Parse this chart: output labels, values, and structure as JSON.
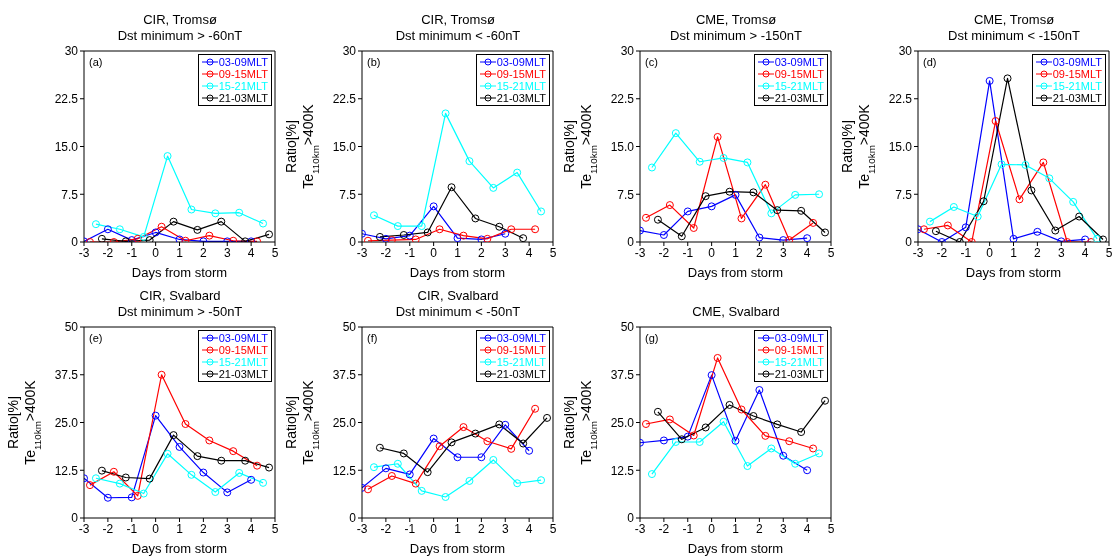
{
  "chart_data": [
    {
      "type": "line",
      "title": "CIR, Tromsø\nDst minimum > -60nT",
      "xlabel": "Days from storm",
      "annotations": [
        "(a)"
      ],
      "xlim": [
        -3,
        5
      ],
      "xticks": [
        -3,
        -2,
        -1,
        0,
        1,
        2,
        3,
        4,
        5
      ],
      "ylim": [
        0,
        30
      ],
      "yticks": [
        0,
        {
          "value": 7.5,
          "label": "7.5"
        },
        {
          "value": 15,
          "label": "15.0"
        },
        {
          "value": 22.5,
          "label": "22.5"
        },
        30
      ],
      "legend": "top right",
      "marker": "circle",
      "line_style": "solid",
      "grid": false,
      "series": [
        {
          "name": "03-09MLT",
          "color": "#0000ff",
          "x": [
            -3,
            -2,
            -1,
            0,
            1,
            2,
            3,
            4
          ],
          "values": [
            0.1,
            2.0,
            0.3,
            1.5,
            0.4,
            0.1,
            0.1,
            0.1
          ]
        },
        {
          "name": "09-15MLT",
          "color": "#ff0000",
          "x": [
            -2.75,
            -1.75,
            -0.75,
            0.25,
            1.25,
            2.25,
            3.25,
            4.25
          ],
          "values": [
            0,
            0,
            0.5,
            2.4,
            0.2,
            1.0,
            0.2,
            0.1
          ]
        },
        {
          "name": "15-21MLT",
          "color": "#00ffff",
          "x": [
            -2.5,
            -1.5,
            -0.5,
            0.5,
            1.5,
            2.5,
            3.5,
            4.5
          ],
          "values": [
            2.8,
            2.0,
            0.8,
            13.5,
            5.1,
            4.5,
            4.6,
            2.9
          ]
        },
        {
          "name": "21-03MLT",
          "color": "#000000",
          "x": [
            -2.25,
            -1.25,
            -0.25,
            0.75,
            1.75,
            2.75,
            3.75,
            4.75
          ],
          "values": [
            0.5,
            0.1,
            0.3,
            3.2,
            1.9,
            3.2,
            0.1,
            1.2
          ]
        }
      ]
    },
    {
      "type": "line",
      "title": "CIR, Tromsø\nDst minimum < -60nT",
      "xlabel": "Days from storm",
      "ylabel": "Ratio[%]\nTe$_{110km}$>400K",
      "annotations": [
        "(b)"
      ],
      "xlim": [
        -3,
        5
      ],
      "xticks": [
        -3,
        -2,
        -1,
        0,
        1,
        2,
        3,
        4,
        5
      ],
      "ylim": [
        0,
        30
      ],
      "yticks": [
        0,
        {
          "value": 7.5,
          "label": "7.5"
        },
        {
          "value": 15,
          "label": "15.0"
        },
        {
          "value": 22.5,
          "label": "22.5"
        },
        30
      ],
      "legend": "top right",
      "marker": "circle",
      "line_style": "solid",
      "grid": false,
      "series": [
        {
          "name": "03-09MLT",
          "color": "#0000ff",
          "x": [
            -3,
            -2,
            -1,
            0,
            1,
            2,
            3
          ],
          "values": [
            1.3,
            0.5,
            1.0,
            5.6,
            0.6,
            0.4,
            1.3
          ]
        },
        {
          "name": "09-15MLT",
          "color": "#ff0000",
          "x": [
            -2.75,
            -1.75,
            -0.75,
            0.25,
            1.25,
            2.25,
            3.25,
            4.25
          ],
          "values": [
            0.2,
            0.3,
            0.4,
            2.0,
            1.0,
            0.5,
            2.0,
            2.0
          ]
        },
        {
          "name": "15-21MLT",
          "color": "#00ffff",
          "x": [
            -2.5,
            -1.5,
            -0.5,
            0.5,
            1.5,
            2.5,
            3.5,
            4.5
          ],
          "values": [
            4.2,
            2.5,
            2.5,
            20.2,
            12.7,
            8.5,
            10.9,
            4.8
          ]
        },
        {
          "name": "21-03MLT",
          "color": "#000000",
          "x": [
            -2.25,
            -1.25,
            -0.25,
            0.75,
            1.75,
            2.75,
            3.75
          ],
          "values": [
            0.8,
            1.1,
            1.5,
            8.6,
            3.7,
            2.4,
            0.6
          ]
        }
      ]
    },
    {
      "type": "line",
      "title": "CME, Tromsø\nDst minimum > -150nT",
      "xlabel": "Days from storm",
      "ylabel": "Ratio[%]\nTe$_{110km}$>400K",
      "annotations": [
        "(c)"
      ],
      "xlim": [
        -3,
        5
      ],
      "xticks": [
        -3,
        -2,
        -1,
        0,
        1,
        2,
        3,
        4,
        5
      ],
      "ylim": [
        0,
        30
      ],
      "yticks": [
        0,
        {
          "value": 7.5,
          "label": "7.5"
        },
        {
          "value": 15,
          "label": "15.0"
        },
        {
          "value": 22.5,
          "label": "22.5"
        },
        30
      ],
      "legend": "top right",
      "marker": "circle",
      "line_style": "solid",
      "grid": false,
      "series": [
        {
          "name": "03-09MLT",
          "color": "#0000ff",
          "x": [
            -3,
            -2,
            -1,
            0,
            1,
            2,
            3,
            4
          ],
          "values": [
            1.8,
            1.1,
            4.8,
            5.6,
            7.4,
            0.7,
            0.3,
            0.6
          ]
        },
        {
          "name": "09-15MLT",
          "color": "#ff0000",
          "x": [
            -2.75,
            -1.75,
            -0.75,
            0.25,
            1.25,
            2.25,
            3.25,
            4.25
          ],
          "values": [
            3.8,
            5.8,
            2.2,
            16.5,
            3.7,
            9.0,
            0.3,
            3.0
          ]
        },
        {
          "name": "15-21MLT",
          "color": "#00ffff",
          "x": [
            -2.5,
            -1.5,
            -0.5,
            0.5,
            1.5,
            2.5,
            3.5,
            4.5
          ],
          "values": [
            11.7,
            17.1,
            12.6,
            13.2,
            12.5,
            4.5,
            7.4,
            7.5
          ]
        },
        {
          "name": "21-03MLT",
          "color": "#000000",
          "x": [
            -2.25,
            -1.25,
            -0.25,
            0.75,
            1.75,
            2.75,
            3.75,
            4.75
          ],
          "values": [
            3.5,
            0.9,
            7.2,
            7.9,
            7.8,
            5.0,
            4.9,
            1.5
          ]
        }
      ]
    },
    {
      "type": "line",
      "title": "CME, Tromsø\nDst minimum < -150nT",
      "xlabel": "Days from storm",
      "ylabel": "Ratio[%]\nTe$_{110km}$>400K",
      "annotations": [
        "(d)"
      ],
      "xlim": [
        -3,
        5
      ],
      "xticks": [
        -3,
        -2,
        -1,
        0,
        1,
        2,
        3,
        4,
        5
      ],
      "ylim": [
        0,
        30
      ],
      "yticks": [
        0,
        {
          "value": 7.5,
          "label": "7.5"
        },
        {
          "value": 15,
          "label": "15.0"
        },
        {
          "value": 22.5,
          "label": "22.5"
        },
        30
      ],
      "legend": "top right",
      "marker": "circle",
      "line_style": "solid",
      "grid": false,
      "series": [
        {
          "name": "03-09MLT",
          "color": "#0000ff",
          "x": [
            -3,
            -2,
            -1,
            0,
            1,
            2,
            3,
            4
          ],
          "values": [
            2.0,
            0,
            2.3,
            25.3,
            0.5,
            1.6,
            0.1,
            0.4
          ]
        },
        {
          "name": "09-15MLT",
          "color": "#ff0000",
          "x": [
            -2.75,
            -1.75,
            -0.75,
            0.25,
            1.25,
            2.25,
            3.25,
            4.25
          ],
          "values": [
            2.0,
            2.6,
            0,
            19.0,
            6.7,
            12.5,
            0,
            0
          ]
        },
        {
          "name": "15-21MLT",
          "color": "#00ffff",
          "x": [
            -2.5,
            -1.5,
            -0.5,
            0.5,
            1.5,
            2.5,
            3.5,
            4.5
          ],
          "values": [
            3.2,
            5.5,
            4.0,
            12.2,
            12.1,
            10.0,
            6.3,
            0.5
          ]
        },
        {
          "name": "21-03MLT",
          "color": "#000000",
          "x": [
            -2.25,
            -1.25,
            -0.25,
            0.75,
            1.75,
            2.75,
            3.75,
            4.75
          ],
          "values": [
            1.7,
            0,
            6.4,
            25.7,
            8.1,
            1.8,
            4.0,
            0.4
          ]
        }
      ]
    },
    {
      "type": "line",
      "title": "CIR, Svalbard\nDst minimum > -50nT",
      "xlabel": "Days from storm",
      "ylabel": "Ratio[%]\nTe$_{110km}$>400K",
      "annotations": [
        "(e)"
      ],
      "xlim": [
        -3,
        5
      ],
      "xticks": [
        -3,
        -2,
        -1,
        0,
        1,
        2,
        3,
        4,
        5
      ],
      "ylim": [
        0,
        50
      ],
      "yticks": [
        0,
        {
          "value": 12.5,
          "label": "12.5"
        },
        {
          "value": 25,
          "label": "25.0"
        },
        {
          "value": 37.5,
          "label": "37.5"
        },
        50
      ],
      "legend": "top right",
      "marker": "circle",
      "line_style": "solid",
      "grid": false,
      "series": [
        {
          "name": "03-09MLT",
          "color": "#0000ff",
          "x": [
            -3,
            -2,
            -1,
            0,
            1,
            2,
            3,
            4
          ],
          "values": [
            10.4,
            5.3,
            5.4,
            26.8,
            18.6,
            11.9,
            6.7,
            10.0
          ]
        },
        {
          "name": "09-15MLT",
          "color": "#ff0000",
          "x": [
            -2.75,
            -1.75,
            -0.75,
            0.25,
            1.25,
            2.25,
            3.25,
            4.25
          ],
          "values": [
            8.6,
            12.1,
            5.8,
            37.5,
            24.6,
            20.3,
            17.5,
            13.7
          ]
        },
        {
          "name": "15-21MLT",
          "color": "#00ffff",
          "x": [
            -2.5,
            -1.5,
            -0.5,
            0.5,
            1.5,
            2.5,
            3.5,
            4.5
          ],
          "values": [
            10.4,
            9.0,
            6.4,
            16.8,
            11.3,
            6.8,
            11.8,
            9.2
          ]
        },
        {
          "name": "21-03MLT",
          "color": "#000000",
          "x": [
            -2.25,
            -1.25,
            -0.25,
            0.75,
            1.75,
            2.75,
            3.75,
            4.75
          ],
          "values": [
            12.4,
            10.6,
            10.3,
            21.7,
            16.2,
            15.0,
            15.0,
            13.2
          ]
        }
      ]
    },
    {
      "type": "line",
      "title": "CIR, Svalbard\nDst minimum < -50nT",
      "xlabel": "Days from storm",
      "ylabel": "Ratio[%]\nTe$_{110km}$>400K",
      "annotations": [
        "(f)"
      ],
      "xlim": [
        -3,
        5
      ],
      "xticks": [
        -3,
        -2,
        -1,
        0,
        1,
        2,
        3,
        4,
        5
      ],
      "ylim": [
        0,
        50
      ],
      "yticks": [
        0,
        {
          "value": 12.5,
          "label": "12.5"
        },
        {
          "value": 25,
          "label": "25.0"
        },
        {
          "value": 37.5,
          "label": "37.5"
        },
        50
      ],
      "legend": "top right",
      "marker": "circle",
      "line_style": "solid",
      "grid": false,
      "series": [
        {
          "name": "03-09MLT",
          "color": "#0000ff",
          "x": [
            -3,
            -2,
            -1,
            0,
            1,
            2,
            3,
            4
          ],
          "values": [
            7.9,
            13.0,
            11.4,
            20.8,
            15.9,
            15.9,
            24.4,
            17.6
          ]
        },
        {
          "name": "09-15MLT",
          "color": "#ff0000",
          "x": [
            -2.75,
            -1.75,
            -0.75,
            0.25,
            1.25,
            2.25,
            3.25,
            4.25
          ],
          "values": [
            7.5,
            11.0,
            9.0,
            18.8,
            23.8,
            20.1,
            18.1,
            28.6
          ]
        },
        {
          "name": "15-21MLT",
          "color": "#00ffff",
          "x": [
            -2.5,
            -1.5,
            -0.5,
            0.5,
            1.5,
            2.5,
            3.5,
            4.5
          ],
          "values": [
            13.3,
            14.2,
            7.1,
            5.5,
            9.7,
            15.2,
            9.1,
            9.9
          ]
        },
        {
          "name": "21-03MLT",
          "color": "#000000",
          "x": [
            -2.25,
            -1.25,
            -0.25,
            0.75,
            1.75,
            2.75,
            3.75,
            4.75
          ],
          "values": [
            18.4,
            16.9,
            12.0,
            19.8,
            22.1,
            24.5,
            19.5,
            26.2
          ]
        }
      ]
    },
    {
      "type": "line",
      "title": "CME, Svalbard",
      "xlabel": "Days from storm",
      "ylabel": "Ratio[%]\nTe$_{110km}$>400K",
      "annotations": [
        "(g)"
      ],
      "xlim": [
        -3,
        5
      ],
      "xticks": [
        -3,
        -2,
        -1,
        0,
        1,
        2,
        3,
        4,
        5
      ],
      "ylim": [
        0,
        50
      ],
      "yticks": [
        0,
        {
          "value": 12.5,
          "label": "12.5"
        },
        {
          "value": 25,
          "label": "25.0"
        },
        {
          "value": 37.5,
          "label": "37.5"
        },
        50
      ],
      "legend": "top right",
      "marker": "circle",
      "line_style": "solid",
      "grid": false,
      "series": [
        {
          "name": "03-09MLT",
          "color": "#0000ff",
          "x": [
            -3,
            -2,
            -1,
            0,
            1,
            2,
            3,
            4
          ],
          "values": [
            19.7,
            20.3,
            21.3,
            37.4,
            20.2,
            33.5,
            16.3,
            12.5
          ]
        },
        {
          "name": "09-15MLT",
          "color": "#ff0000",
          "x": [
            -2.75,
            -1.75,
            -0.75,
            0.25,
            1.25,
            2.25,
            3.25,
            4.25
          ],
          "values": [
            24.6,
            25.8,
            21.6,
            41.9,
            28.4,
            21.5,
            20.1,
            18.2
          ]
        },
        {
          "name": "15-21MLT",
          "color": "#00ffff",
          "x": [
            -2.5,
            -1.5,
            -0.5,
            0.5,
            1.5,
            2.5,
            3.5,
            4.5
          ],
          "values": [
            11.5,
            19.9,
            19.9,
            25.2,
            13.6,
            18.2,
            14.2,
            16.9
          ]
        },
        {
          "name": "21-03MLT",
          "color": "#000000",
          "x": [
            -2.25,
            -1.25,
            -0.25,
            0.75,
            1.75,
            2.75,
            3.75,
            4.75
          ],
          "values": [
            27.8,
            20.6,
            23.7,
            29.6,
            26.7,
            24.5,
            22.5,
            30.7
          ]
        }
      ]
    }
  ]
}
